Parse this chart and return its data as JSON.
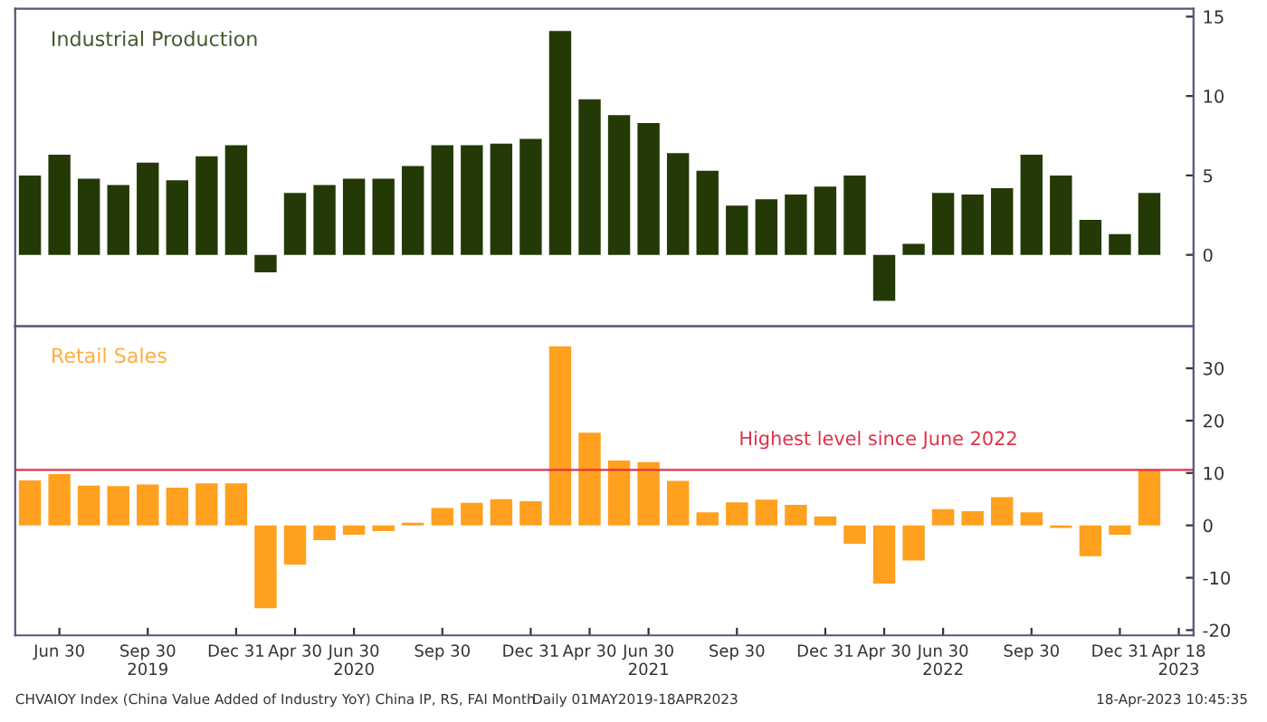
{
  "chart_data": [
    {
      "type": "bar",
      "title": "Industrial Production",
      "categories": [
        null,
        null,
        null,
        null,
        null,
        null,
        null,
        null,
        null,
        null,
        null,
        null,
        null,
        null,
        null,
        null,
        null,
        null,
        null,
        null,
        null,
        null,
        null,
        null,
        null,
        null,
        null,
        null,
        null,
        null,
        null,
        null,
        null,
        null,
        null,
        null,
        null,
        null,
        null,
        null
      ],
      "series": [
        {
          "color": "#243a06",
          "values": [
            5.0,
            6.3,
            4.8,
            4.4,
            5.8,
            4.7,
            6.2,
            6.9,
            -1.1,
            3.9,
            4.4,
            4.8,
            4.8,
            5.6,
            6.9,
            6.9,
            7.0,
            7.3,
            14.1,
            9.8,
            8.8,
            8.3,
            6.4,
            5.3,
            3.1,
            3.5,
            3.8,
            4.3,
            5.0,
            -2.9,
            0.7,
            3.9,
            3.8,
            4.2,
            6.3,
            5.0,
            2.2,
            1.3,
            3.9,
            null
          ]
        }
      ],
      "ylim": [
        -4.5,
        15.5
      ],
      "yticks": [
        0,
        5,
        10,
        15
      ],
      "tick_labels": "y",
      "grid": false
    },
    {
      "type": "bar",
      "title": "Retail Sales",
      "categories": [
        null,
        "Jun 30",
        null,
        null,
        "Sep 30\n2019",
        null,
        null,
        "Dec 31",
        null,
        "Apr 30",
        null,
        "Jun 30\n2020",
        null,
        null,
        "Sep 30",
        null,
        null,
        "Dec 31",
        null,
        "Apr 30",
        null,
        "Jun 30\n2021",
        null,
        null,
        "Sep 30",
        null,
        null,
        "Dec 31",
        null,
        "Apr 30",
        null,
        "Jun 30\n2022",
        null,
        null,
        "Sep 30",
        null,
        null,
        "Dec 31",
        null,
        "Apr 18\n2023"
      ],
      "series": [
        {
          "color": "#ffa01e",
          "values": [
            8.6,
            9.8,
            7.6,
            7.5,
            7.8,
            7.2,
            8.0,
            8.0,
            -15.8,
            -7.5,
            -2.8,
            -1.8,
            -1.1,
            0.5,
            3.3,
            4.3,
            5.0,
            4.6,
            34.2,
            17.7,
            12.4,
            12.1,
            8.5,
            2.5,
            4.4,
            4.9,
            3.9,
            1.7,
            -3.5,
            -11.1,
            -6.7,
            3.1,
            2.7,
            5.4,
            2.5,
            -0.5,
            -5.9,
            -1.8,
            10.6,
            null
          ]
        }
      ],
      "ylim": [
        -21,
        38
      ],
      "yticks": [
        -20,
        -10,
        0,
        10,
        20,
        30
      ],
      "grid": false,
      "ref_lines": [
        {
          "axis": "y",
          "value": 10.6,
          "label": "Highest level since June 2022",
          "color": "#e0304a"
        }
      ],
      "annotations": [
        "CHVAIOY Index (China Value Added of Industry YoY) China IP, RS, FAI Month",
        "Daily 01MAY2019-18APR2023",
        "18-Apr-2023 10:45:35"
      ]
    }
  ]
}
